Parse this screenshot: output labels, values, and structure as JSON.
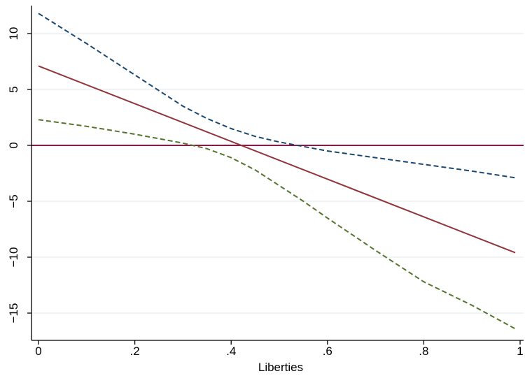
{
  "chart_data": {
    "type": "line",
    "xlabel": "Liberties",
    "ylabel": "",
    "title": "",
    "xlim": [
      0,
      1
    ],
    "ylim": [
      -17.5,
      12.5
    ],
    "grid": "horizontal",
    "x_ticks": [
      {
        "value": 0,
        "label": "0"
      },
      {
        "value": 0.2,
        "label": ".2"
      },
      {
        "value": 0.4,
        "label": ".4"
      },
      {
        "value": 0.6,
        "label": ".6"
      },
      {
        "value": 0.8,
        "label": ".8"
      },
      {
        "value": 1,
        "label": "1"
      }
    ],
    "y_ticks": [
      {
        "value": 10,
        "label": "10"
      },
      {
        "value": 5,
        "label": "5"
      },
      {
        "value": 0,
        "label": "0"
      },
      {
        "value": -5,
        "label": "−5"
      },
      {
        "value": -10,
        "label": "−10"
      },
      {
        "value": -15,
        "label": "−15"
      }
    ],
    "reference_line": {
      "y": 0,
      "color": "#a0103c"
    },
    "series": [
      {
        "style": "dashed",
        "color": "#1a476f",
        "x": [
          0,
          0.1,
          0.2,
          0.3,
          0.35,
          0.4,
          0.45,
          0.5,
          0.55,
          0.6,
          0.7,
          0.8,
          0.9,
          0.99
        ],
        "y": [
          11.8,
          9.1,
          6.3,
          3.5,
          2.4,
          1.5,
          0.8,
          0.3,
          -0.1,
          -0.5,
          -1.1,
          -1.7,
          -2.3,
          -2.9
        ]
      },
      {
        "style": "solid",
        "color": "#90353b",
        "x": [
          0,
          0.99
        ],
        "y": [
          7.1,
          -9.6
        ]
      },
      {
        "style": "dashed",
        "color": "#55752f",
        "x": [
          0,
          0.1,
          0.2,
          0.3,
          0.35,
          0.4,
          0.45,
          0.5,
          0.55,
          0.6,
          0.7,
          0.8,
          0.9,
          0.99
        ],
        "y": [
          2.3,
          1.7,
          1.0,
          0.2,
          -0.3,
          -1.1,
          -2.2,
          -3.6,
          -5.0,
          -6.5,
          -9.4,
          -12.2,
          -14.3,
          -16.4
        ]
      }
    ]
  }
}
